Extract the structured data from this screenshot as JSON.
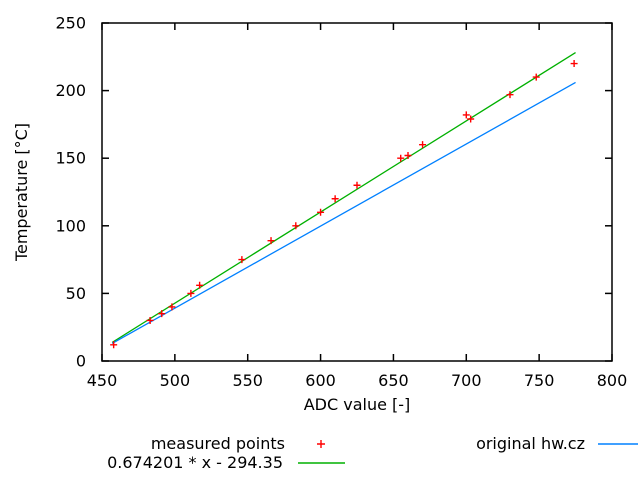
{
  "chart_data": {
    "type": "scatter",
    "title": "",
    "xlabel": "ADC value [-]",
    "ylabel": "Temperature [°C]",
    "xlim": [
      450,
      800
    ],
    "ylim": [
      0,
      250
    ],
    "x_ticks": [
      450,
      500,
      550,
      600,
      650,
      700,
      750,
      800
    ],
    "y_ticks": [
      0,
      50,
      100,
      150,
      200,
      250
    ],
    "grid": false,
    "legend_position": "below",
    "axis_color": "#000000",
    "series": [
      {
        "name": "measured points",
        "type": "scatter",
        "marker": "plus",
        "color": "#ff0000",
        "points": [
          [
            458,
            12
          ],
          [
            483,
            30
          ],
          [
            491,
            35
          ],
          [
            498,
            40
          ],
          [
            511,
            50
          ],
          [
            517,
            56
          ],
          [
            546,
            75
          ],
          [
            566,
            89
          ],
          [
            583,
            100
          ],
          [
            600,
            110
          ],
          [
            610,
            120
          ],
          [
            625,
            130
          ],
          [
            655,
            150
          ],
          [
            660,
            152
          ],
          [
            670,
            160
          ],
          [
            700,
            182
          ],
          [
            703,
            179
          ],
          [
            730,
            197
          ],
          [
            748,
            210
          ],
          [
            774,
            220
          ]
        ]
      },
      {
        "name": "0.674201 * x - 294.35",
        "type": "line",
        "color": "#00b000",
        "equation": {
          "slope": 0.674201,
          "intercept": -294.35
        },
        "x_range": [
          457,
          775
        ]
      },
      {
        "name": "original hw.cz",
        "type": "line",
        "color": "#0080ff",
        "points": [
          [
            457,
            13
          ],
          [
            775,
            206
          ]
        ]
      }
    ]
  }
}
